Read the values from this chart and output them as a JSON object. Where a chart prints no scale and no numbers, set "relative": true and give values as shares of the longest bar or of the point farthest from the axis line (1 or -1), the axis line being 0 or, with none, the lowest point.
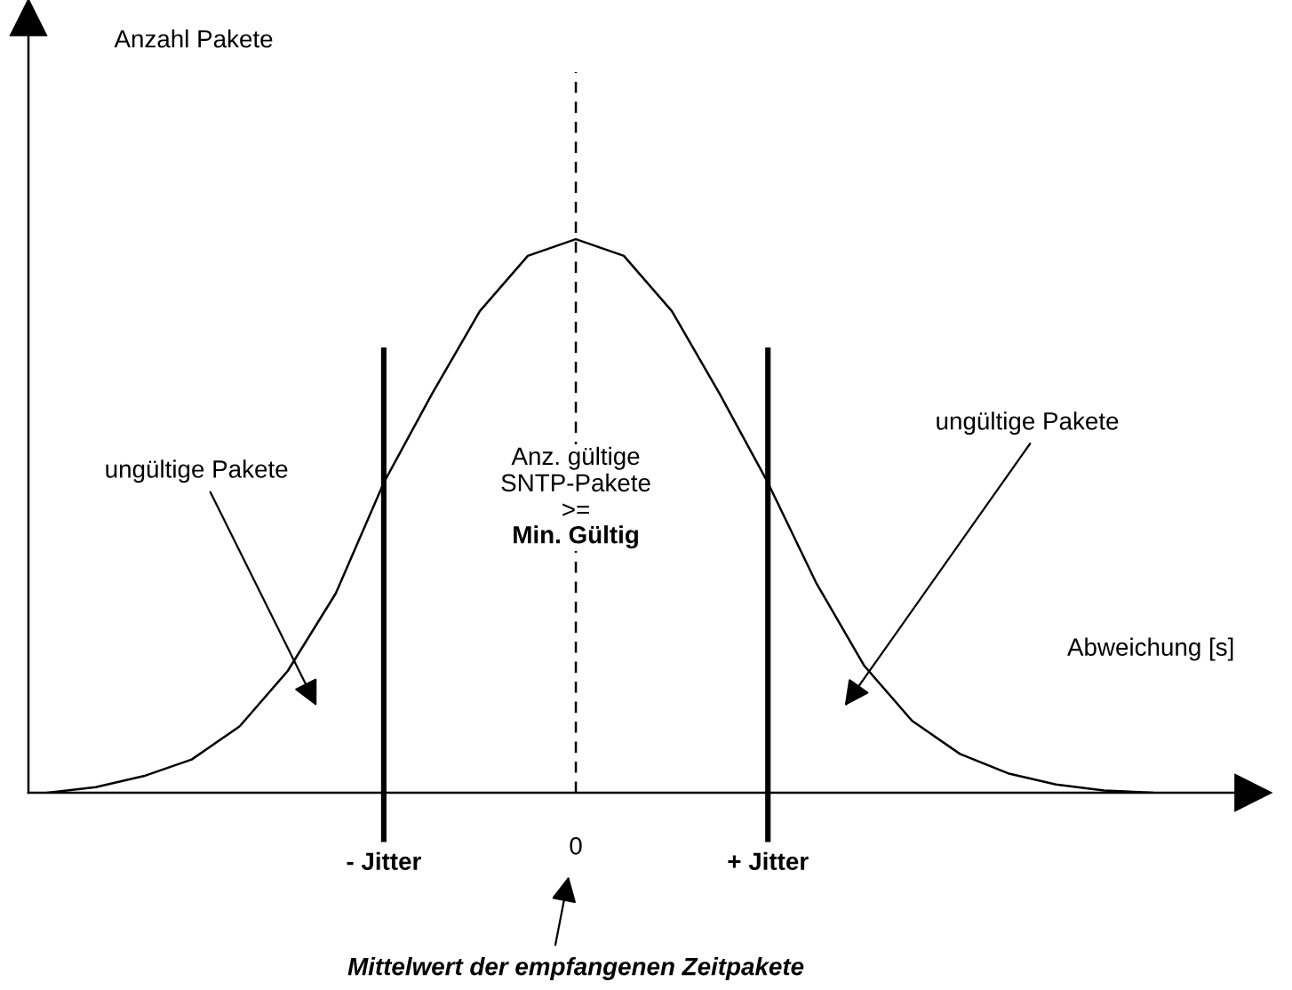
{
  "chart_data": {
    "type": "line",
    "relative": true,
    "xlabel": "Abweichung [s]",
    "categories": [
      null,
      null,
      null,
      null,
      null,
      null,
      null,
      "- Jitter",
      null,
      null,
      null,
      "0",
      null,
      null,
      null,
      "+ Jitter",
      null,
      null,
      null,
      null,
      null,
      null,
      null,
      null
    ],
    "series": [
      {
        "color": "#000000",
        "values": [
          0.0,
          0.01,
          0.03,
          0.06,
          0.12,
          0.22,
          0.36,
          0.56,
          0.72,
          0.87,
          0.97,
          1.0,
          0.97,
          0.87,
          0.72,
          0.56,
          0.38,
          0.23,
          0.13,
          0.07,
          0.035,
          0.015,
          0.004,
          0.0
        ]
      }
    ],
    "ref_lines": [
      {
        "axis": "x",
        "value": "- Jitter",
        "color": "#000000",
        "line_style": "solid"
      },
      {
        "axis": "x",
        "value": "0",
        "color": "#000000",
        "line_style": "dashed"
      },
      {
        "axis": "x",
        "value": "+ Jitter",
        "color": "#000000",
        "line_style": "solid"
      }
    ],
    "annotations": [
      "ungültige Pakete",
      "Anz. gültige\nSNTP-Pakete\n>=",
      "Min. Gültig",
      "ungültige Pakete",
      "Mittelwert der empfangenen Zeitpakete",
      "Anzahl Pakete"
    ],
    "grid": false,
    "legend": false
  }
}
